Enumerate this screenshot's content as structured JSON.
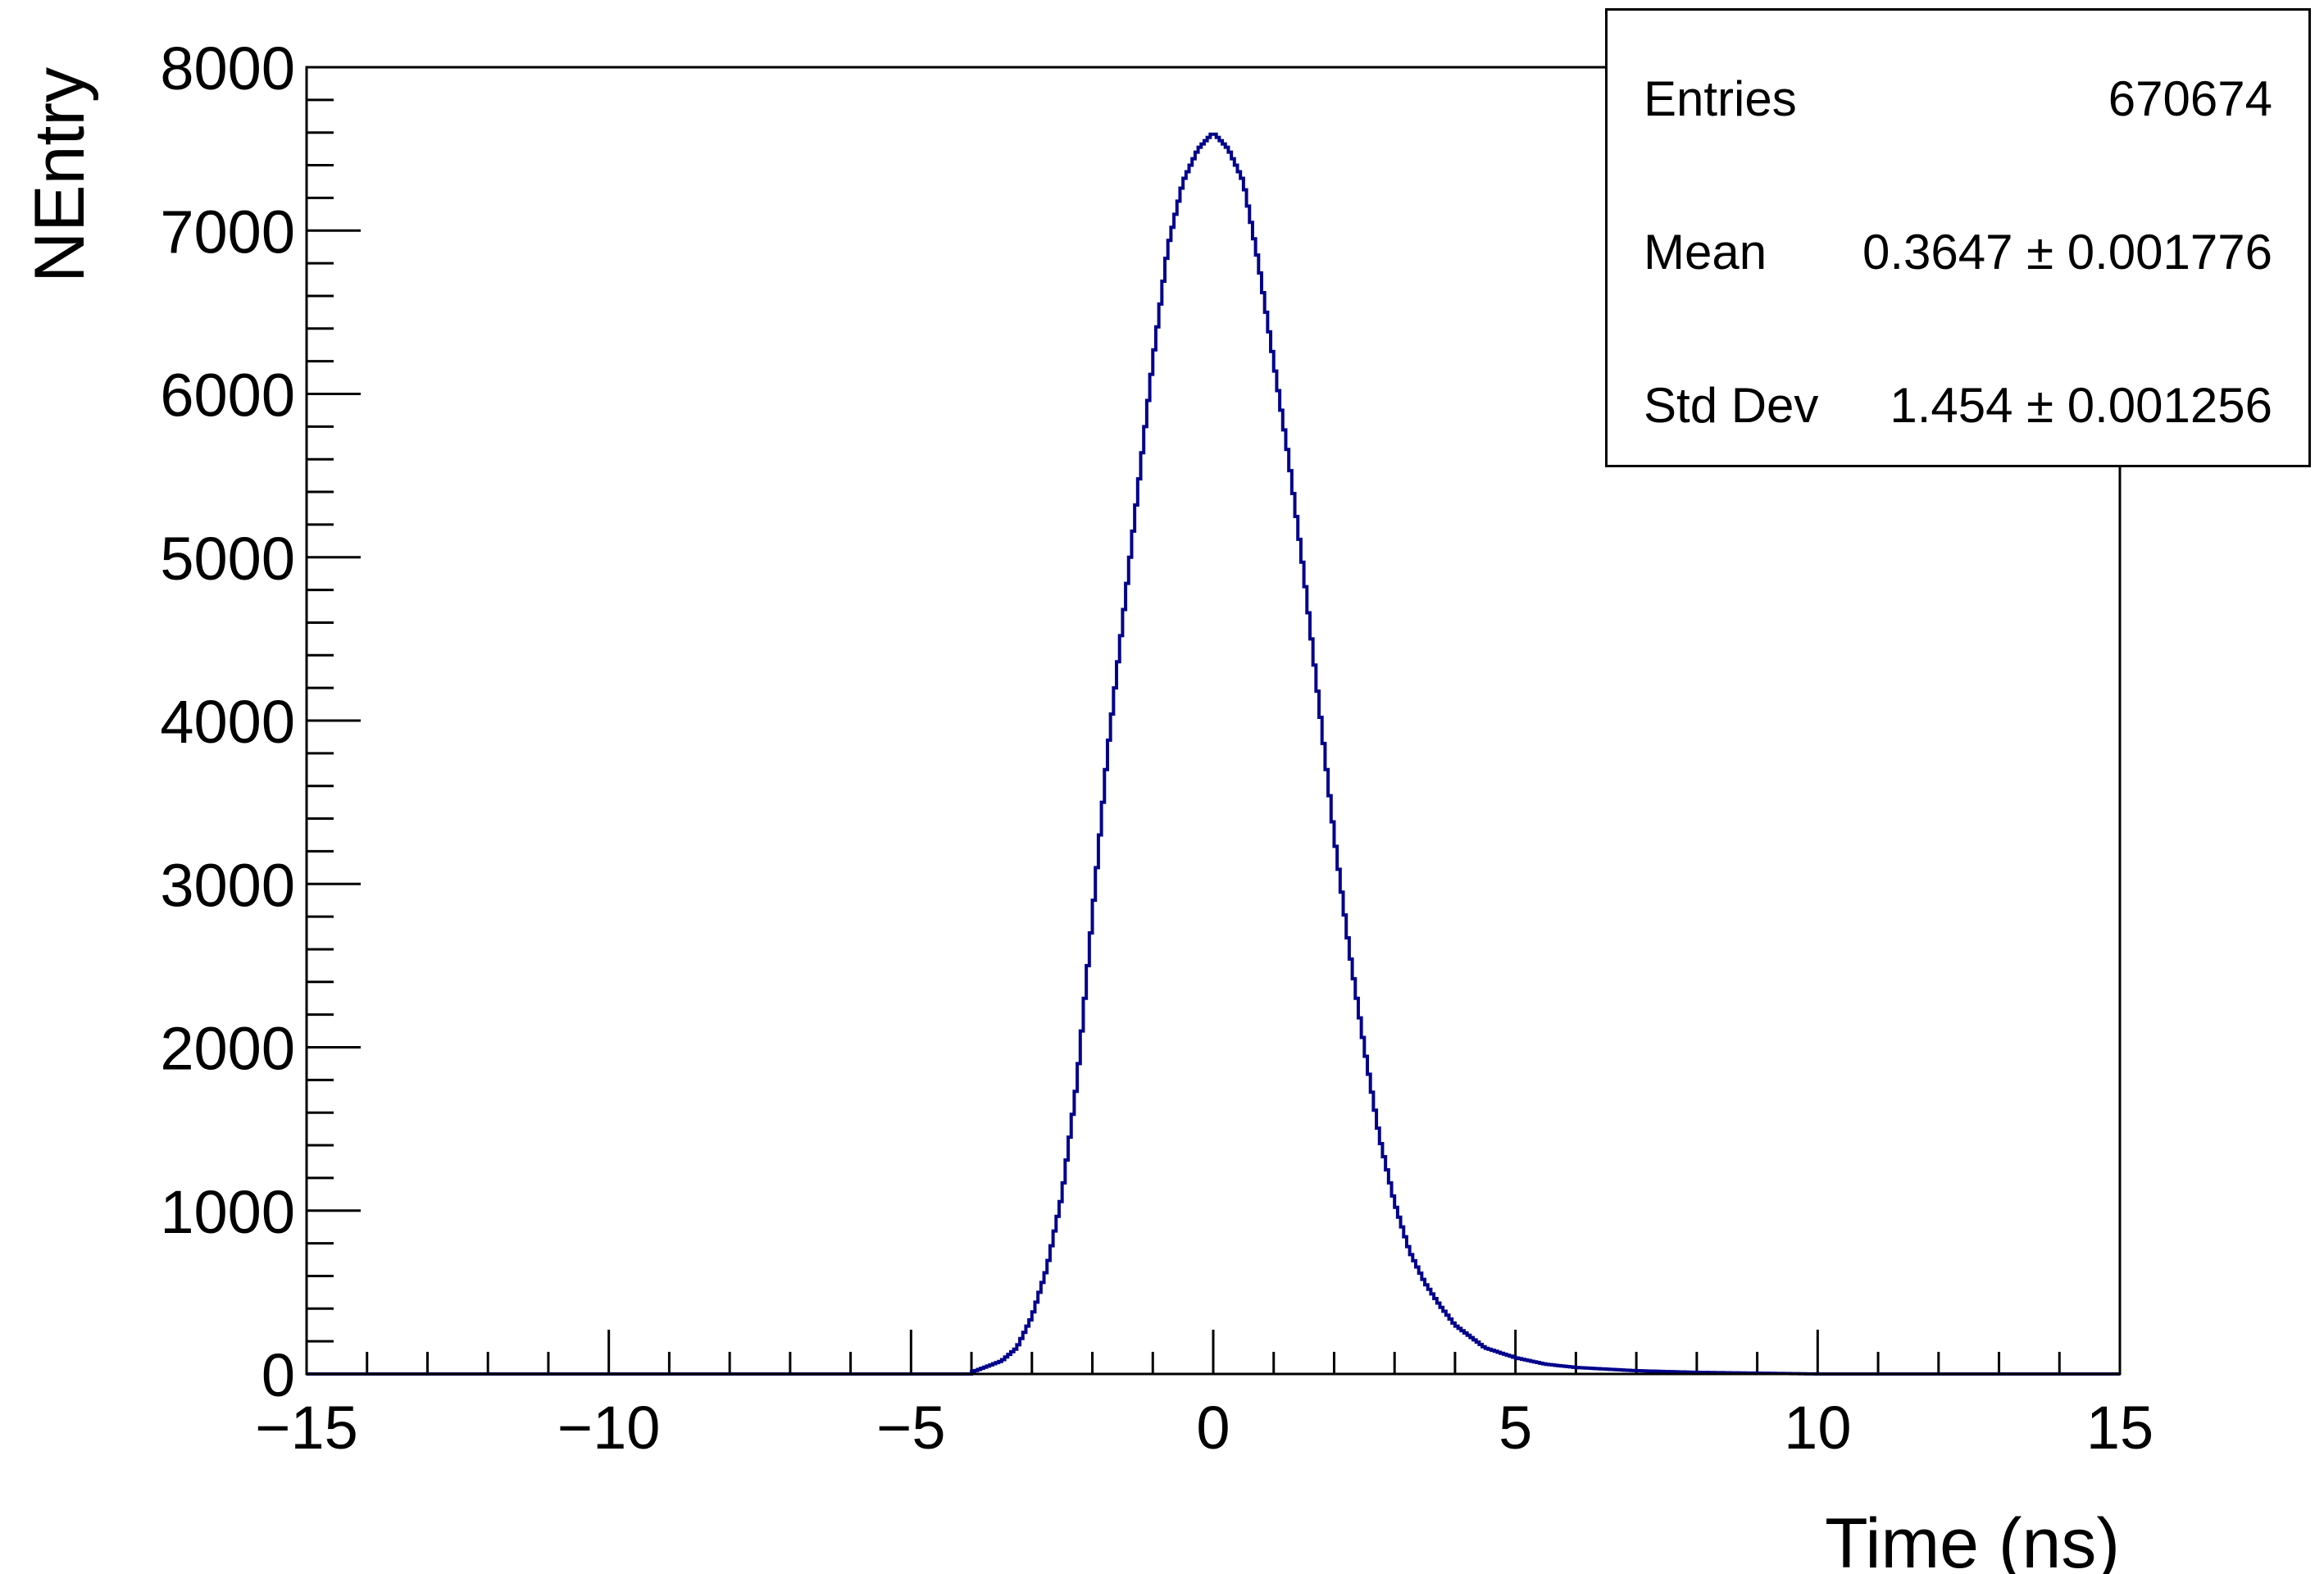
{
  "colors": {
    "histogram": "#00008b",
    "axes": "#000000",
    "background": "#ffffff"
  },
  "chart_data": {
    "type": "line",
    "style": "step-histogram",
    "title": "",
    "xlabel": "Time (ns)",
    "ylabel": "NEntry",
    "xlim": [
      -15,
      15
    ],
    "ylim": [
      0,
      8000
    ],
    "grid": false,
    "x_ticks": [
      "−15",
      "−10",
      "−5",
      "0",
      "5",
      "10",
      "15"
    ],
    "y_ticks": [
      "0",
      "1000",
      "2000",
      "3000",
      "4000",
      "5000",
      "6000",
      "7000",
      "8000"
    ],
    "series": [
      {
        "x": [
          -4.0,
          -3.5,
          -3.25,
          -3.0,
          -2.75,
          -2.5,
          -2.25,
          -2.0,
          -1.75,
          -1.5,
          -1.25,
          -1.0,
          -0.75,
          -0.5,
          -0.25,
          0.0,
          0.25,
          0.5,
          0.75,
          1.0,
          1.25,
          1.5,
          1.75,
          2.0,
          2.25,
          2.5,
          2.75,
          3.0,
          3.25,
          3.5,
          3.75,
          4.0,
          4.5,
          5.0,
          5.5,
          6.0,
          7.0,
          8.0,
          10.0
        ],
        "y": [
          10,
          80,
          160,
          350,
          650,
          1100,
          1800,
          2800,
          3800,
          4600,
          5400,
          6200,
          6900,
          7300,
          7500,
          7600,
          7500,
          7300,
          6800,
          6200,
          5600,
          4900,
          4100,
          3300,
          2600,
          2000,
          1450,
          1050,
          750,
          560,
          420,
          300,
          160,
          100,
          60,
          40,
          20,
          10,
          0
        ]
      }
    ]
  },
  "stats": {
    "entries_label": "Entries",
    "entries_value": "670674",
    "mean_label": "Mean",
    "mean_value": "0.3647 ± 0.001776",
    "std_label": "Std Dev",
    "std_value": "1.454 ± 0.001256"
  }
}
